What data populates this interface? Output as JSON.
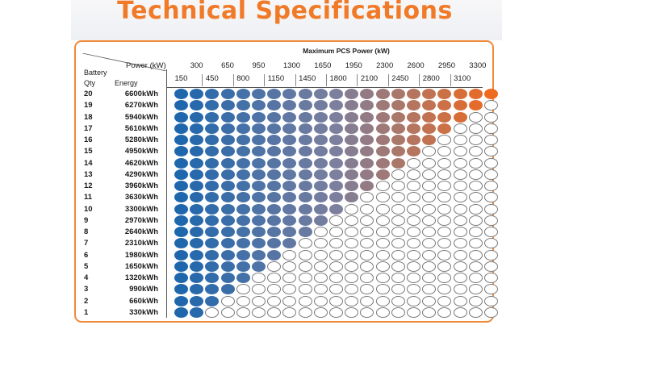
{
  "title": "Technical Specifications",
  "matrix_title": "Maximum PCS Power (kW)",
  "header": {
    "power_label": "Power (kW)",
    "battery_label": "Battery",
    "qty_label": "Qty",
    "energy_label": "Energy"
  },
  "power_levels_odd": [
    "300",
    "650",
    "950",
    "1300",
    "1650",
    "1950",
    "2300",
    "2600",
    "2950",
    "3300"
  ],
  "power_levels_even": [
    "150",
    "450",
    "800",
    "1150",
    "1450",
    "1800",
    "2100",
    "2450",
    "2800",
    "3100"
  ],
  "rows": [
    {
      "qty": "20",
      "energy": "6600kWh",
      "filled": 21
    },
    {
      "qty": "19",
      "energy": "6270kWh",
      "filled": 20
    },
    {
      "qty": "18",
      "energy": "5940kWh",
      "filled": 19
    },
    {
      "qty": "17",
      "energy": "5610kWh",
      "filled": 18
    },
    {
      "qty": "16",
      "energy": "5280kWh",
      "filled": 17
    },
    {
      "qty": "15",
      "energy": "4950kWh",
      "filled": 16
    },
    {
      "qty": "14",
      "energy": "4620kWh",
      "filled": 15
    },
    {
      "qty": "13",
      "energy": "4290kWh",
      "filled": 14
    },
    {
      "qty": "12",
      "energy": "3960kWh",
      "filled": 13
    },
    {
      "qty": "11",
      "energy": "3630kWh",
      "filled": 12
    },
    {
      "qty": "10",
      "energy": "3300kWh",
      "filled": 11
    },
    {
      "qty": "9",
      "energy": "2970kWh",
      "filled": 10
    },
    {
      "qty": "8",
      "energy": "2640kWh",
      "filled": 9
    },
    {
      "qty": "7",
      "energy": "2310kWh",
      "filled": 8
    },
    {
      "qty": "6",
      "energy": "1980kWh",
      "filled": 7
    },
    {
      "qty": "5",
      "energy": "1650kWh",
      "filled": 6
    },
    {
      "qty": "4",
      "energy": "1320kWh",
      "filled": 5
    },
    {
      "qty": "3",
      "energy": "990kWh",
      "filled": 4
    },
    {
      "qty": "2",
      "energy": "660kWh",
      "filled": 3
    },
    {
      "qty": "1",
      "energy": "330kWh",
      "filled": 2
    }
  ],
  "colors": {
    "title": "#f07a27",
    "border": "#ef8a3a",
    "gradient_start": "#1f67ad",
    "gradient_mid": "#7c7f9e",
    "gradient_end": "#ee6a1f"
  }
}
